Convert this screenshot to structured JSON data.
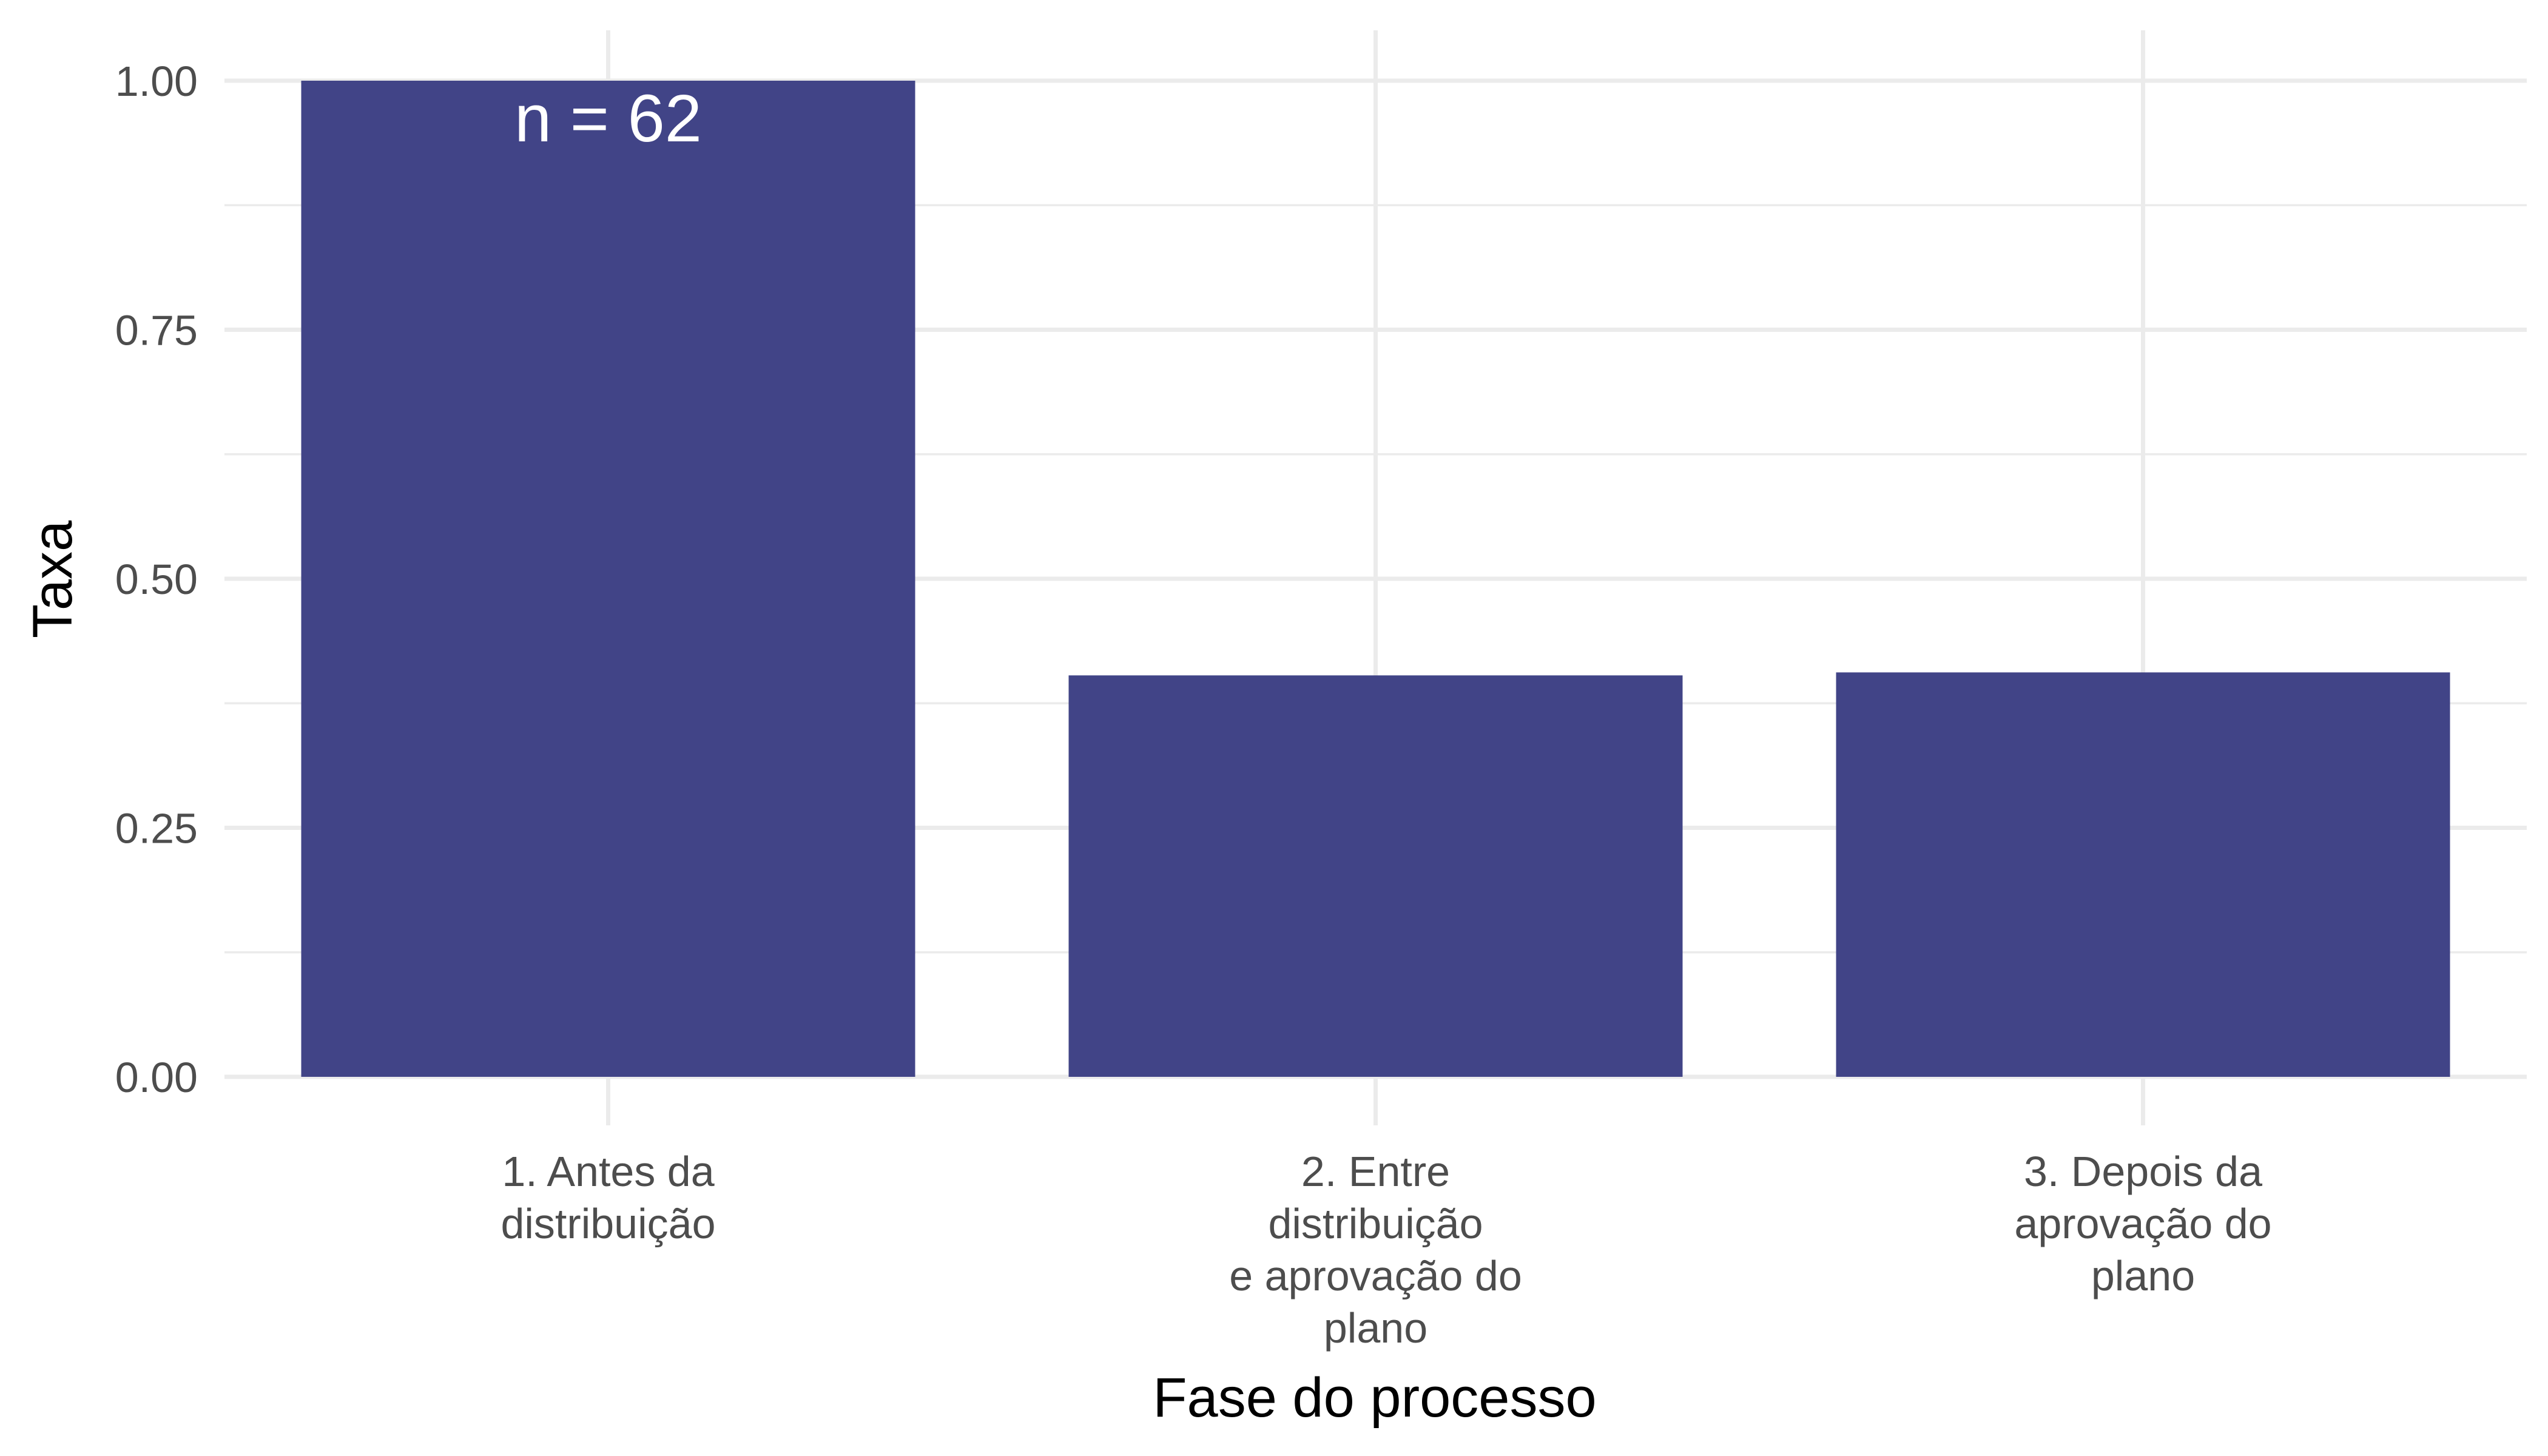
{
  "chart_data": {
    "type": "bar",
    "categories": [
      [
        "1. Antes da",
        "distribuição"
      ],
      [
        "2. Entre",
        "distribuição",
        "e aprovação do",
        "plano"
      ],
      [
        "3. Depois da",
        "aprovação do",
        "plano"
      ]
    ],
    "values": [
      1.0,
      0.403,
      0.406
    ],
    "data_labels": [
      "n = 62",
      "",
      ""
    ],
    "xlabel": "Fase do processo",
    "ylabel": "Taxa",
    "ylim": [
      0,
      1
    ],
    "yticks": [
      "0.00",
      "0.25",
      "0.50",
      "0.75",
      "1.00"
    ],
    "grid": true,
    "bar_color": "#414487",
    "grid_color": "#ebebeb"
  }
}
